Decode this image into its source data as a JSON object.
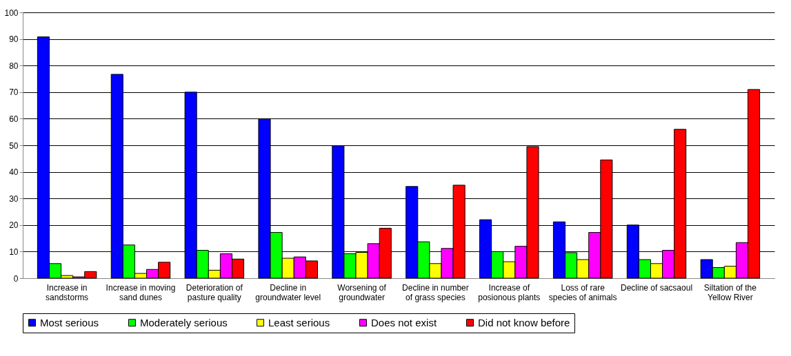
{
  "chart_data": {
    "type": "bar",
    "categories": [
      "Increase in sandstorms",
      "Increase in moving sand dunes",
      "Deterioration of pasture quality",
      "Decline in groundwater level",
      "Worsening of groundwater",
      "Decline in number of grass species",
      "Increase of posionous plants",
      "Loss of rare species of animals",
      "Decline of sacsaoul",
      "Siltation of the Yellow River"
    ],
    "series": [
      {
        "name": "Most serious",
        "color": "#0000ff",
        "values": [
          90.8,
          76.7,
          70,
          60,
          49.8,
          34.5,
          22,
          21.2,
          20,
          7
        ]
      },
      {
        "name": "Moderately serious",
        "color": "#00ff00",
        "values": [
          5.5,
          12.5,
          10.5,
          17.2,
          9.2,
          13.7,
          10,
          9.6,
          7,
          4
        ]
      },
      {
        "name": "Least serious",
        "color": "#ffff00",
        "values": [
          1,
          1.8,
          3,
          7.5,
          9.7,
          5.5,
          6.2,
          7,
          5.5,
          4.5
        ]
      },
      {
        "name": "Does not exist",
        "color": "#ff00ff",
        "values": [
          0.5,
          3.3,
          9.2,
          8,
          13,
          11.2,
          12,
          17.2,
          10.5,
          13.4
        ]
      },
      {
        "name": "Did not know before",
        "color": "#ff0000",
        "values": [
          2.5,
          6,
          7.2,
          6.5,
          18.8,
          35,
          49.5,
          44.5,
          56,
          71
        ]
      }
    ],
    "ylim": [
      0,
      100
    ],
    "yticks": [
      0,
      10,
      20,
      30,
      40,
      50,
      60,
      70,
      80,
      90,
      100
    ],
    "grid": "y",
    "legend": "bottom"
  }
}
